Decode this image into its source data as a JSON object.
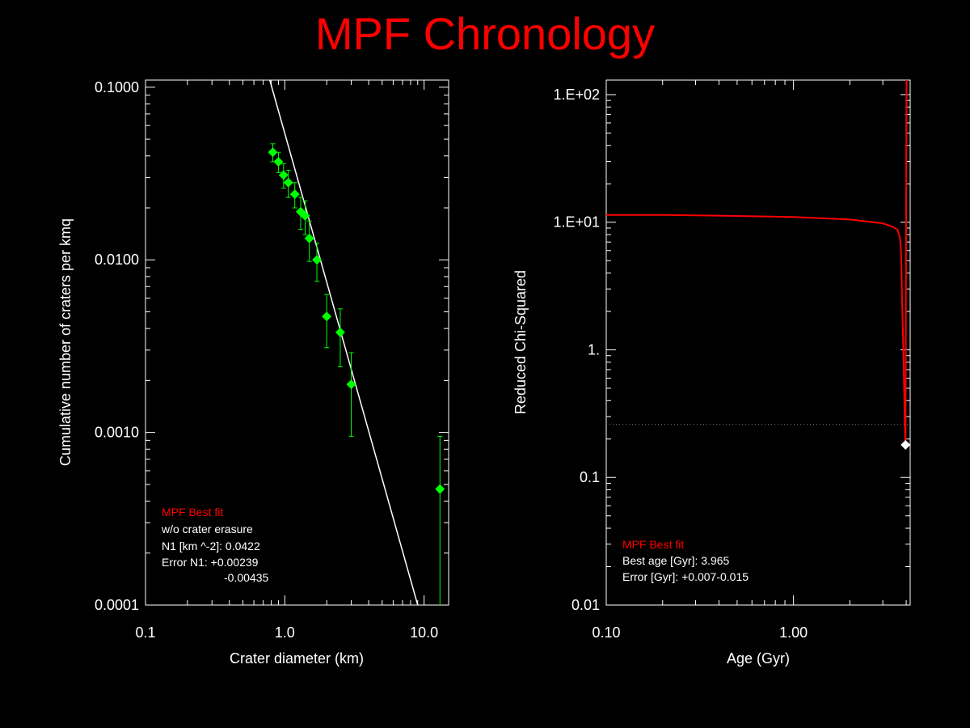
{
  "title": "MPF Chronology",
  "chart_data": [
    {
      "type": "scatter",
      "xlabel": "Crater diameter (km)",
      "ylabel": "Cumulative number of craters per kmq",
      "x_scale": "log",
      "y_scale": "log",
      "xlim": [
        0.1,
        15
      ],
      "ylim": [
        0.0001,
        0.11
      ],
      "x_tick_labels": [
        "0.1",
        "1.0",
        "10.0"
      ],
      "x_tick_values": [
        0.1,
        1,
        10
      ],
      "y_tick_labels": [
        "0.0001",
        "0.0010",
        "0.0100",
        "0.1000"
      ],
      "y_tick_values": [
        0.0001,
        0.001,
        0.01,
        0.1
      ],
      "series": [
        {
          "kind": "points",
          "color": "#00ff00",
          "points": [
            {
              "x": 0.82,
              "y": 0.042,
              "err_up": 0.005,
              "err_down": 0.005
            },
            {
              "x": 0.9,
              "y": 0.037,
              "err_up": 0.005,
              "err_down": 0.005
            },
            {
              "x": 0.98,
              "y": 0.031,
              "err_up": 0.005,
              "err_down": 0.005
            },
            {
              "x": 1.06,
              "y": 0.028,
              "err_up": 0.005,
              "err_down": 0.005
            },
            {
              "x": 1.18,
              "y": 0.024,
              "err_up": 0.004,
              "err_down": 0.004
            },
            {
              "x": 1.3,
              "y": 0.019,
              "err_up": 0.004,
              "err_down": 0.004
            },
            {
              "x": 1.4,
              "y": 0.018,
              "err_up": 0.004,
              "err_down": 0.004
            },
            {
              "x": 1.5,
              "y": 0.0133,
              "err_up": 0.0035,
              "err_down": 0.0035
            },
            {
              "x": 1.7,
              "y": 0.01,
              "err_up": 0.0025,
              "err_down": 0.0025
            },
            {
              "x": 2.0,
              "y": 0.0047,
              "err_up": 0.0016,
              "err_down": 0.0016
            },
            {
              "x": 2.5,
              "y": 0.0038,
              "err_up": 0.0014,
              "err_down": 0.0014
            },
            {
              "x": 3.0,
              "y": 0.0019,
              "err_up": 0.001,
              "err_down": 0.00095
            },
            {
              "x": 13.0,
              "y": 0.00047,
              "err_up": 0.00048,
              "err_down": 0.00045
            }
          ]
        },
        {
          "kind": "line",
          "color": "#ffffff",
          "x": [
            0.78,
            9.0
          ],
          "y": [
            0.11,
            0.0001
          ]
        }
      ],
      "annotations": {
        "fit_title": "MPF Best fit",
        "line1": "w/o crater erasure",
        "line2": "N1 [km ^-2]: 0.0422",
        "line3": "Error N1: +0.00239",
        "line4": "-0.00435"
      }
    },
    {
      "type": "line",
      "xlabel": "Age (Gyr)",
      "ylabel": "Reduced Chi-Squared",
      "x_scale": "log",
      "y_scale": "log",
      "xlim": [
        0.1,
        4.2
      ],
      "ylim": [
        0.01,
        130
      ],
      "x_tick_labels": [
        "0.10",
        "1.00"
      ],
      "x_tick_values": [
        0.1,
        1
      ],
      "y_tick_labels": [
        "0.01",
        "0.1",
        "1.",
        "1.E+01",
        "1.E+02"
      ],
      "y_tick_values": [
        0.01,
        0.1,
        1,
        10,
        100
      ],
      "series": [
        {
          "kind": "line",
          "color": "#ff0000",
          "x": [
            0.1,
            0.2,
            0.5,
            1.0,
            2.0,
            3.0,
            3.4,
            3.6,
            3.7,
            3.75,
            3.78,
            3.8,
            3.83,
            3.86,
            3.9,
            3.93,
            3.95,
            3.965,
            3.98,
            3.99,
            4.0,
            4.01,
            4.02
          ],
          "y": [
            11.4,
            11.4,
            11.2,
            11.0,
            10.5,
            9.8,
            9.2,
            8.7,
            7.6,
            6.0,
            4.0,
            2.5,
            1.6,
            1.0,
            0.5,
            0.27,
            0.2,
            0.18,
            1.0,
            5.0,
            20.0,
            60.0,
            150.0
          ]
        },
        {
          "kind": "hline",
          "color": "#808080",
          "y": 0.26
        },
        {
          "kind": "marker",
          "color": "#ffffff",
          "x": 3.965,
          "y": 0.18
        }
      ],
      "annotations": {
        "fit_title": "MPF Best fit",
        "line1": "Best age [Gyr]: 3.965",
        "line2": "Error [Gyr]: +0.007-0.015"
      }
    }
  ]
}
